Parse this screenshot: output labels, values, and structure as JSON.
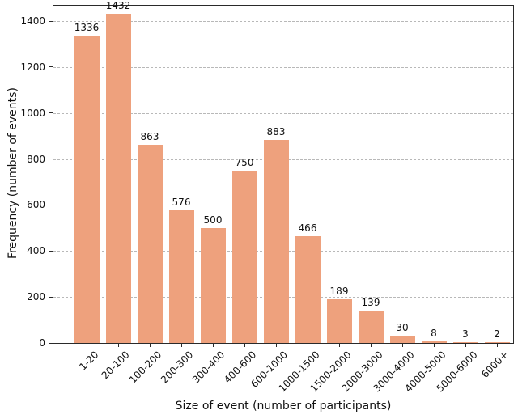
{
  "chart_data": {
    "type": "bar",
    "title": "",
    "xlabel": "Size of event (number of participants)",
    "ylabel": "Frequency (number of events)",
    "categories": [
      "1-20",
      "20-100",
      "100-200",
      "200-300",
      "300-400",
      "400-600",
      "600-1000",
      "1000-1500",
      "1500-2000",
      "2000-3000",
      "3000-4000",
      "4000-5000",
      "5000-6000",
      "6000+"
    ],
    "values": [
      1336,
      1432,
      863,
      576,
      500,
      750,
      883,
      466,
      189,
      139,
      30,
      8,
      3,
      2
    ],
    "bar_value_labels_shown": true,
    "yticks": [
      0,
      200,
      400,
      600,
      800,
      1000,
      1200,
      1400
    ],
    "ylim": [
      0,
      1467
    ],
    "grid": "horizontal-dashed",
    "legend": "none",
    "colors": {
      "bar": "#eea17d",
      "grid": "#b8b8b8",
      "axis": "#2a2a2a",
      "text": "#111111",
      "background": "#ffffff"
    }
  }
}
